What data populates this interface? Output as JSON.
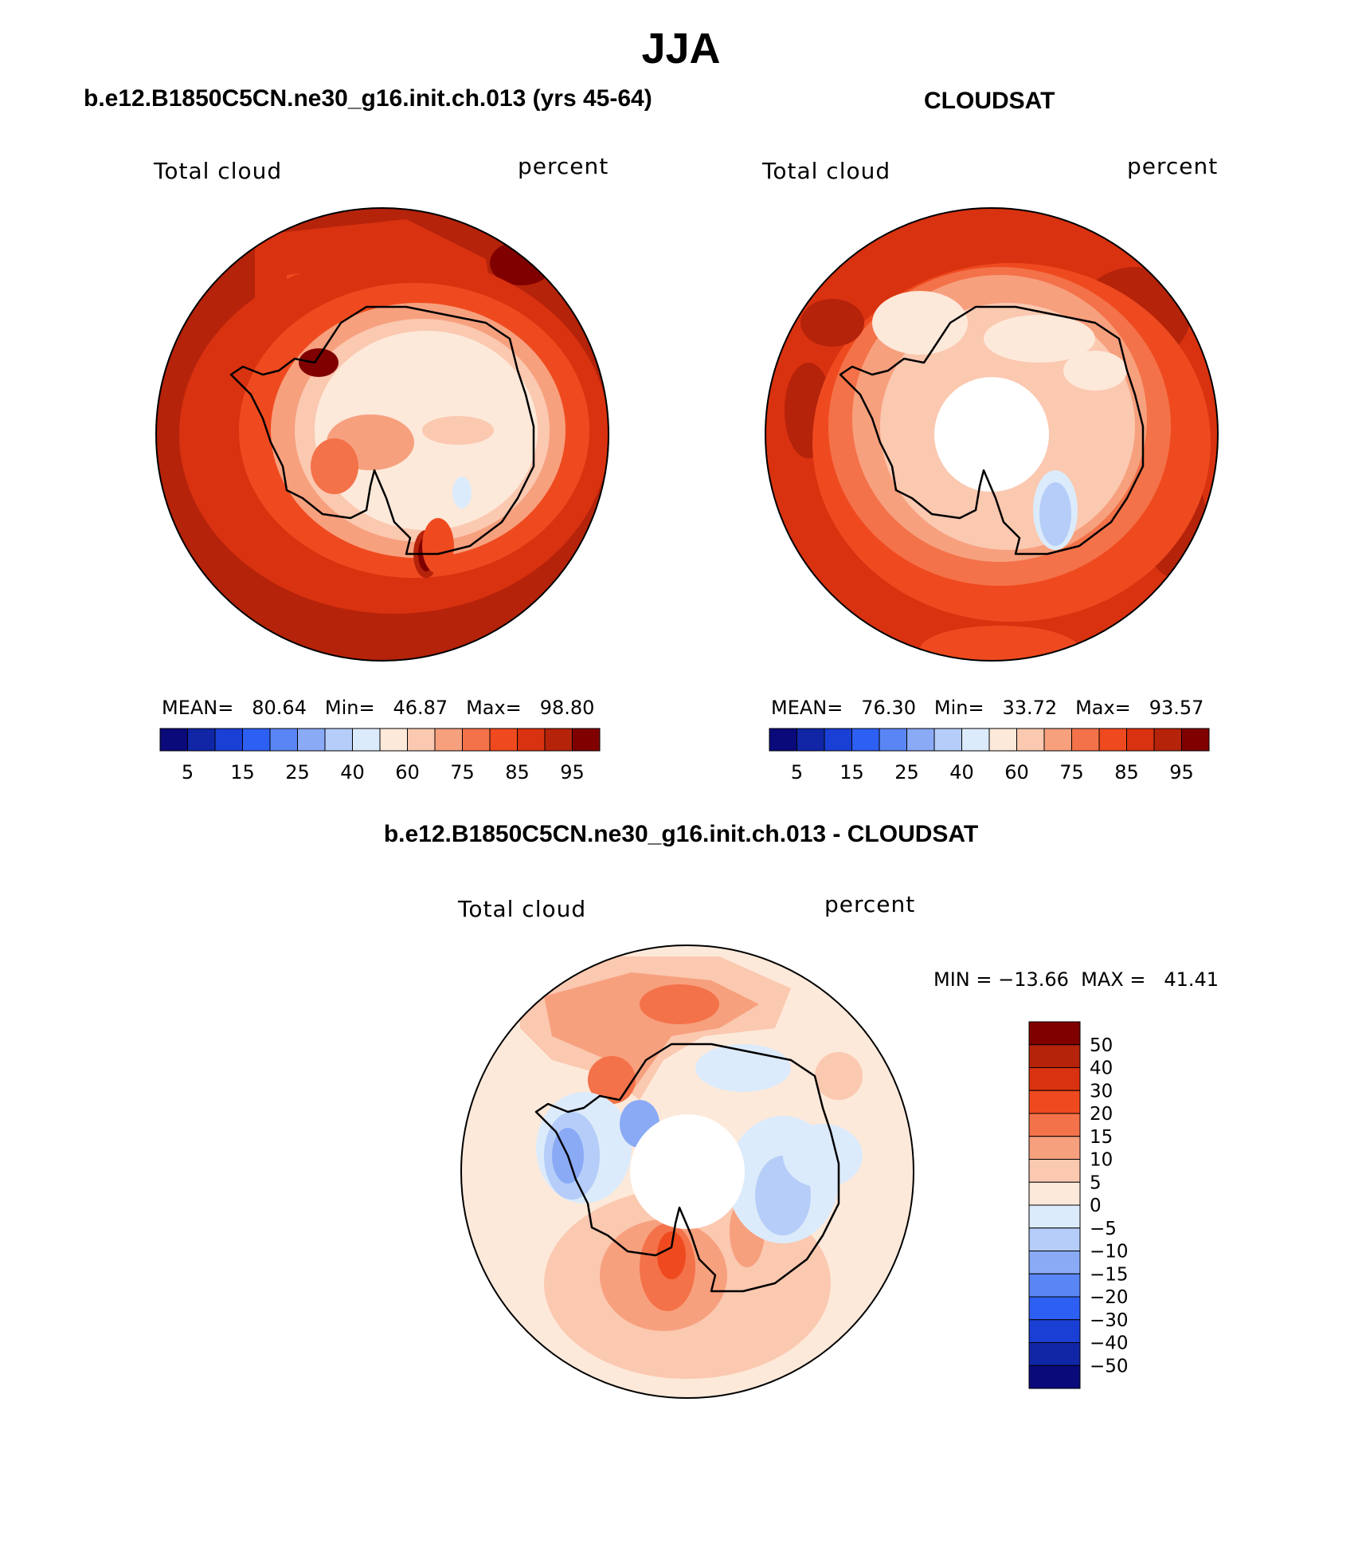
{
  "page": {
    "title": "JJA",
    "diff_title": "b.e12.B1850C5CN.ne30_g16.init.ch.013 - CLOUDSAT"
  },
  "panels": [
    {
      "title": "b.e12.B1850C5CN.ne30_g16.init.ch.013 (yrs 45-64)",
      "left_label": "Total cloud",
      "right_label": "percent",
      "stats": {
        "mean_label": "MEAN=",
        "mean": "80.64",
        "min_label": "Min=",
        "min": "46.87",
        "max_label": "Max=",
        "max": "98.80"
      }
    },
    {
      "title": "CLOUDSAT",
      "left_label": "Total cloud",
      "right_label": "percent",
      "stats": {
        "mean_label": "MEAN=",
        "mean": "76.30",
        "min_label": "Min=",
        "min": "33.72",
        "max_label": "Max=",
        "max": "93.57"
      }
    },
    {
      "left_label": "Total cloud",
      "right_label": "percent",
      "stats_line": "MIN = −13.66  MAX =   41.41"
    }
  ],
  "chart_data": [
    {
      "type": "heatmap",
      "projection": "south-polar-stereographic",
      "colorbar": {
        "orientation": "horizontal",
        "colors": [
          "#0a0a7a",
          "#1026a6",
          "#1a3fd4",
          "#2d5ff2",
          "#5a86f5",
          "#8aaaf6",
          "#b5cdf8",
          "#dcebfb",
          "#fde9da",
          "#fbc8b0",
          "#f7a07e",
          "#f47249",
          "#ef4a1f",
          "#d93210",
          "#b5230a",
          "#800000"
        ],
        "tick_labels": [
          "5",
          "15",
          "25",
          "40",
          "60",
          "75",
          "85",
          "95"
        ]
      }
    },
    {
      "type": "heatmap",
      "projection": "south-polar-stereographic",
      "colorbar": {
        "orientation": "horizontal",
        "colors": [
          "#0a0a7a",
          "#1026a6",
          "#1a3fd4",
          "#2d5ff2",
          "#5a86f5",
          "#8aaaf6",
          "#b5cdf8",
          "#dcebfb",
          "#fde9da",
          "#fbc8b0",
          "#f7a07e",
          "#f47249",
          "#ef4a1f",
          "#d93210",
          "#b5230a",
          "#800000"
        ],
        "tick_labels": [
          "5",
          "15",
          "25",
          "40",
          "60",
          "75",
          "85",
          "95"
        ]
      }
    },
    {
      "type": "heatmap",
      "projection": "south-polar-stereographic",
      "colorbar": {
        "orientation": "vertical",
        "colors_top_to_bottom": [
          "#800000",
          "#b5230a",
          "#d93210",
          "#ef4a1f",
          "#f47249",
          "#f7a07e",
          "#fbc8b0",
          "#fde9da",
          "#dcebfb",
          "#b5cdf8",
          "#8aaaf6",
          "#5a86f5",
          "#2d5ff2",
          "#1a3fd4",
          "#1026a6",
          "#0a0a7a"
        ],
        "tick_labels": [
          "50",
          "40",
          "30",
          "20",
          "15",
          "10",
          "5",
          "0",
          "−5",
          "−10",
          "−15",
          "−20",
          "−30",
          "−40",
          "−50"
        ]
      }
    }
  ]
}
